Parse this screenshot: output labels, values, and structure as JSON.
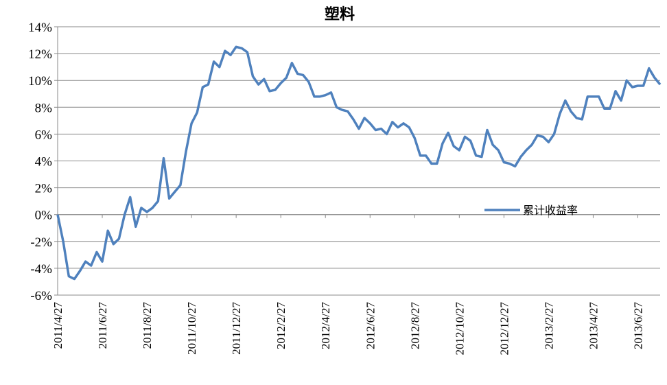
{
  "chart_data": {
    "type": "line",
    "title": "塑料",
    "categories": [
      "2011/4/27",
      null,
      null,
      null,
      null,
      null,
      null,
      null,
      "2011/6/27",
      null,
      null,
      null,
      null,
      null,
      null,
      null,
      "2011/8/27",
      null,
      null,
      null,
      null,
      null,
      null,
      null,
      "2011/10/27",
      null,
      null,
      null,
      null,
      null,
      null,
      null,
      "2011/12/27",
      null,
      null,
      null,
      null,
      null,
      null,
      null,
      "2012/2/27",
      null,
      null,
      null,
      null,
      null,
      null,
      null,
      "2012/4/27",
      null,
      null,
      null,
      null,
      null,
      null,
      null,
      "2012/6/27",
      null,
      null,
      null,
      null,
      null,
      null,
      null,
      "2012/8/27",
      null,
      null,
      null,
      null,
      null,
      null,
      null,
      "2012/10/27",
      null,
      null,
      null,
      null,
      null,
      null,
      null,
      "2012/12/27",
      null,
      null,
      null,
      null,
      null,
      null,
      null,
      "2013/2/27",
      null,
      null,
      null,
      null,
      null,
      null,
      null,
      "2013/4/27",
      null,
      null,
      null,
      null,
      null,
      null,
      null,
      "2013/6/27",
      null,
      null,
      null,
      null
    ],
    "series": [
      {
        "name": "累计收益率",
        "color": "#4f81bd",
        "values": [
          0,
          -2,
          -4.6,
          -4.8,
          -4.2,
          -3.5,
          -3.8,
          -2.8,
          -3.5,
          -1.2,
          -2.2,
          -1.8,
          0,
          1.3,
          -0.9,
          0.5,
          0.2,
          0.5,
          1.0,
          4.2,
          1.2,
          1.7,
          2.2,
          4.7,
          6.8,
          7.6,
          9.5,
          9.7,
          11.4,
          11,
          12.2,
          11.9,
          12.5,
          12.4,
          12.1,
          10.3,
          9.7,
          10.1,
          9.2,
          9.3,
          9.8,
          10.2,
          11.3,
          10.5,
          10.4,
          9.9,
          8.8,
          8.8,
          8.9,
          9.1,
          8,
          7.8,
          7.7,
          7.1,
          6.4,
          7.2,
          6.8,
          6.3,
          6.4,
          6,
          6.9,
          6.5,
          6.8,
          6.5,
          5.7,
          4.4,
          4.4,
          3.8,
          3.8,
          5.3,
          6.1,
          5.1,
          4.8,
          5.8,
          5.5,
          4.4,
          4.3,
          6.3,
          5.2,
          4.8,
          3.9,
          3.8,
          3.6,
          4.3,
          4.8,
          5.2,
          5.9,
          5.8,
          5.4,
          6,
          7.5,
          8.5,
          7.7,
          7.2,
          7.1,
          8.8,
          8.8,
          8.8,
          7.9,
          7.9,
          9.2,
          8.5,
          10,
          9.5,
          9.6,
          9.6,
          10.9,
          10.2,
          9.7
        ]
      }
    ],
    "ylim": [
      -6,
      14
    ],
    "yticks": [
      {
        "value": -6,
        "label": "-6%"
      },
      {
        "value": -4,
        "label": "-4%"
      },
      {
        "value": -2,
        "label": "-2%"
      },
      {
        "value": 0,
        "label": "0%"
      },
      {
        "value": 2,
        "label": "2%"
      },
      {
        "value": 4,
        "label": "4%"
      },
      {
        "value": 6,
        "label": "6%"
      },
      {
        "value": 8,
        "label": "8%"
      },
      {
        "value": 10,
        "label": "10%"
      },
      {
        "value": 12,
        "label": "12%"
      },
      {
        "value": 14,
        "label": "14%"
      }
    ],
    "grid": true,
    "legend": "right"
  }
}
